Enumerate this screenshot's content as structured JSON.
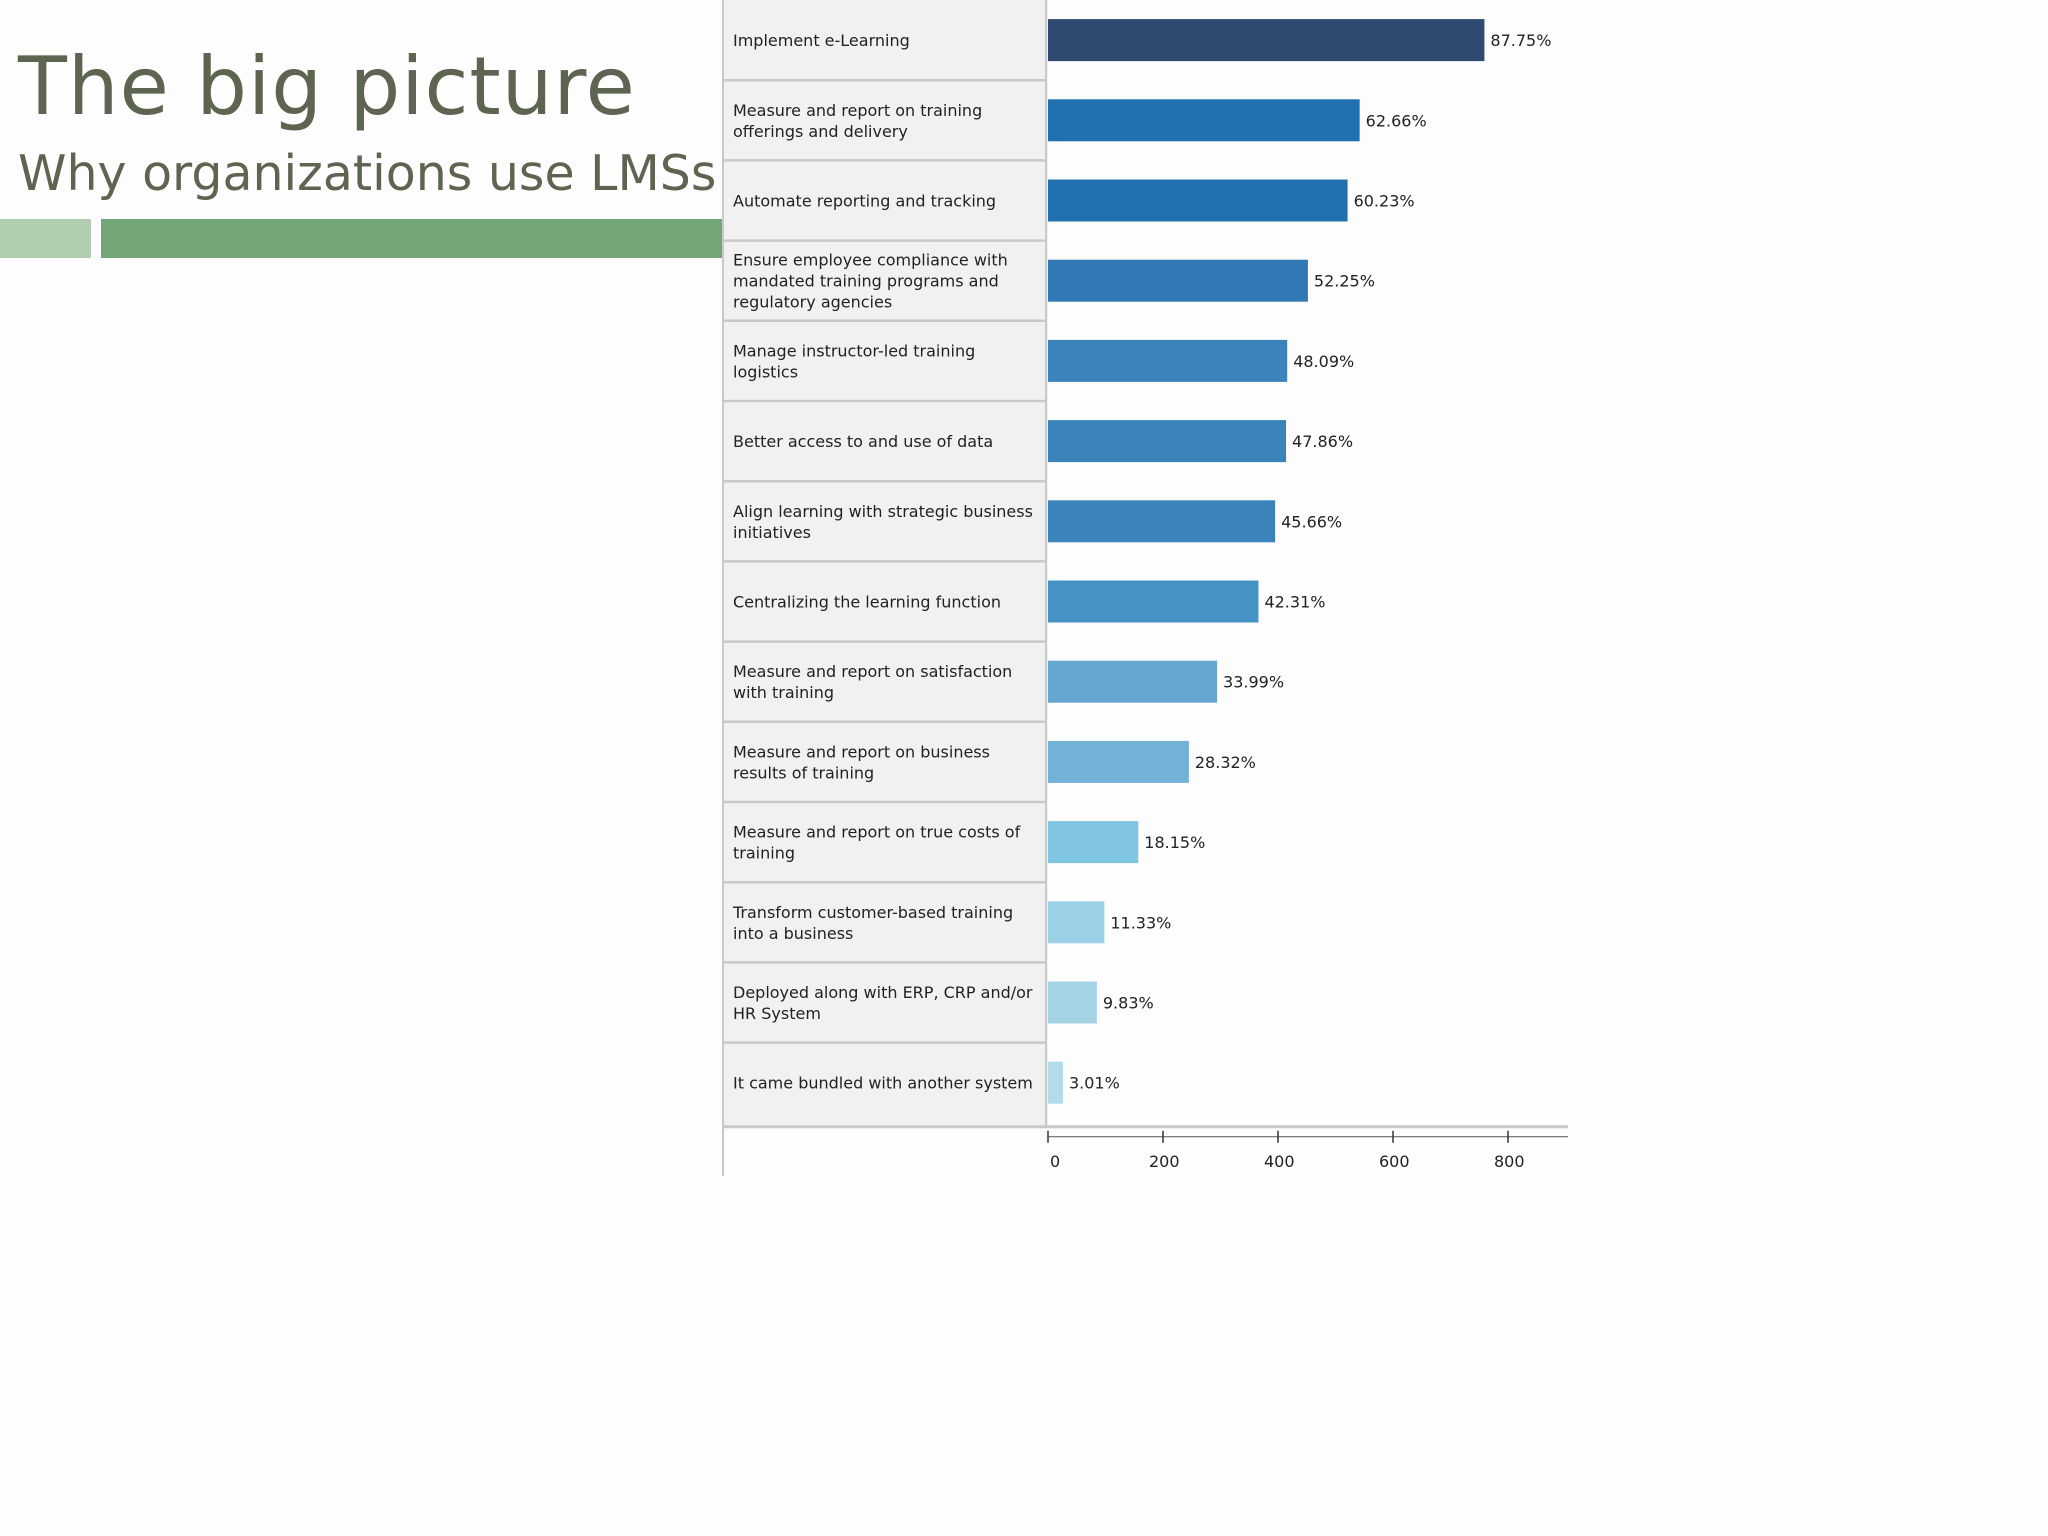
{
  "slide": {
    "title": "The big picture",
    "subtitle": "Why organizations use LMSs"
  },
  "colors": {
    "title": "#5d6450",
    "accent_light": "#b2ceb0",
    "accent_dark": "#72a678",
    "label_panel": "#f1f1f1",
    "bars": [
      "#2e4a70",
      "#2171b0",
      "#2171b0",
      "#3079b6",
      "#3a84bb",
      "#3a84bb",
      "#3a84bb",
      "#4493c4",
      "#63a6d0",
      "#72b2d6",
      "#80c6e3",
      "#9bd0e6",
      "#a5d3e6",
      "#b2dcea"
    ]
  },
  "chart_data": {
    "type": "bar",
    "orientation": "horizontal",
    "categories": [
      "Implement e-Learning",
      "Measure and report on training offerings and delivery",
      "Automate reporting and tracking",
      "Ensure employee compliance with mandated training programs and regulatory agencies",
      "Manage instructor-led training logistics",
      "Better access to and use of data",
      "Align learning with strategic business initiatives",
      "Centralizing the learning function",
      "Measure and report on satisfaction with training",
      "Measure and report on business results of training",
      "Measure and report on true costs of training",
      "Transform customer-based training into a business",
      "Deployed along with ERP, CRP and/or HR System",
      "It came bundled with another system"
    ],
    "category_label_lines": [
      [
        "Implement e-Learning"
      ],
      [
        "Measure and report on training",
        "offerings and delivery"
      ],
      [
        "Automate reporting and tracking"
      ],
      [
        "Ensure employee compliance with",
        "mandated training programs and",
        "regulatory agencies"
      ],
      [
        "Manage instructor-led training",
        "logistics"
      ],
      [
        "Better access to and use of data"
      ],
      [
        "Align learning with strategic business",
        "initiatives"
      ],
      [
        "Centralizing the learning function"
      ],
      [
        "Measure and report on satisfaction",
        "with training"
      ],
      [
        "Measure and report on business",
        "results of training"
      ],
      [
        "Measure and report on true costs of",
        "training"
      ],
      [
        "Transform customer-based training",
        "into a business"
      ],
      [
        "Deployed along with ERP, CRP and/or",
        "HR System"
      ],
      [
        "It came bundled with another system"
      ]
    ],
    "values": [
      759,
      542,
      521,
      452,
      416,
      414,
      395,
      366,
      294,
      245,
      157,
      98,
      85,
      26
    ],
    "data_labels": [
      "87.75%",
      "62.66%",
      "60.23%",
      "52.25%",
      "48.09%",
      "47.86%",
      "45.66%",
      "42.31%",
      "33.99%",
      "28.32%",
      "18.15%",
      "11.33%",
      "9.83%",
      "3.01%"
    ],
    "x_ticks": [
      0,
      200,
      400,
      600,
      800
    ],
    "xlim": [
      0,
      900
    ],
    "grid": false,
    "legend": "none"
  }
}
